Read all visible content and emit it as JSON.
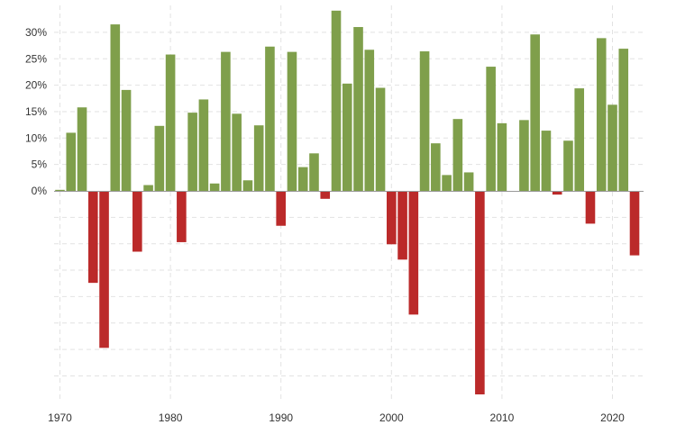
{
  "chart_data": {
    "type": "bar",
    "title": "",
    "xlabel": "",
    "ylabel": "",
    "x": [
      1970,
      1971,
      1972,
      1973,
      1974,
      1975,
      1976,
      1977,
      1978,
      1979,
      1980,
      1981,
      1982,
      1983,
      1984,
      1985,
      1986,
      1987,
      1988,
      1989,
      1990,
      1991,
      1992,
      1993,
      1994,
      1995,
      1996,
      1997,
      1998,
      1999,
      2000,
      2001,
      2002,
      2003,
      2004,
      2005,
      2006,
      2007,
      2008,
      2009,
      2010,
      2011,
      2012,
      2013,
      2014,
      2015,
      2016,
      2017,
      2018,
      2019,
      2020,
      2021,
      2022
    ],
    "values": [
      0.2,
      11.0,
      15.8,
      -17.4,
      -29.7,
      31.5,
      19.1,
      -11.5,
      1.1,
      12.3,
      25.8,
      -9.7,
      14.8,
      17.3,
      1.4,
      26.3,
      14.6,
      2.0,
      12.4,
      27.3,
      -6.6,
      26.3,
      4.5,
      7.1,
      -1.5,
      34.1,
      20.3,
      31.0,
      26.7,
      19.5,
      -10.1,
      -13.0,
      -23.4,
      26.4,
      9.0,
      3.0,
      13.6,
      3.5,
      -38.5,
      23.5,
      12.8,
      0.0,
      13.4,
      29.6,
      11.4,
      -0.7,
      9.5,
      19.4,
      -6.2,
      28.9,
      16.3,
      26.9,
      -12.2
    ],
    "positive_color": "#7f9f4b",
    "negative_color": "#bb2a2a",
    "ylim": [
      -39,
      35
    ],
    "y_ticks": [
      {
        "value": 0,
        "label": "0%"
      },
      {
        "value": 5,
        "label": "5%"
      },
      {
        "value": 10,
        "label": "10%"
      },
      {
        "value": 15,
        "label": "15%"
      },
      {
        "value": 20,
        "label": "20%"
      },
      {
        "value": 25,
        "label": "25%"
      },
      {
        "value": 30,
        "label": "30%"
      }
    ],
    "y_grid_minor": [
      -5,
      -10,
      -15,
      -20,
      -25,
      -30,
      -35
    ],
    "x_ticks": [
      {
        "value": 1970,
        "label": "1970"
      },
      {
        "value": 1980,
        "label": "1980"
      },
      {
        "value": 1990,
        "label": "1990"
      },
      {
        "value": 2000,
        "label": "2000"
      },
      {
        "value": 2010,
        "label": "2010"
      },
      {
        "value": 2020,
        "label": "2020"
      }
    ],
    "grid": true,
    "legend": "none"
  }
}
